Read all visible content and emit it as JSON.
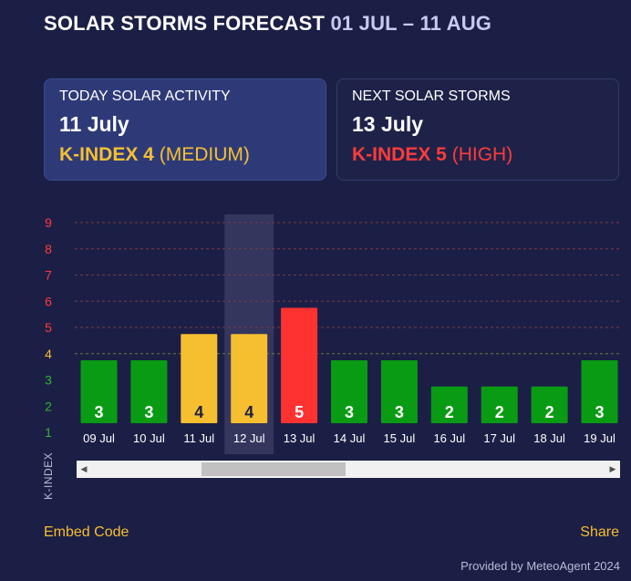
{
  "header": {
    "title": "SOLAR STORMS FORECAST",
    "range": "01 JUL – 11 AUG"
  },
  "today": {
    "label": "TODAY SOLAR ACTIVITY",
    "date": "11 July",
    "k_text": "K-INDEX 4",
    "level": "(MEDIUM)"
  },
  "next": {
    "label": "NEXT SOLAR STORMS",
    "date": "13 July",
    "k_text": "K-INDEX 5",
    "level": "(HIGH)"
  },
  "chart_data": {
    "type": "bar",
    "ylabel": "K-INDEX",
    "ylim": [
      1,
      9
    ],
    "yticks": [
      1,
      2,
      3,
      4,
      5,
      6,
      7,
      8,
      9
    ],
    "categories": [
      "09 Jul",
      "10 Jul",
      "11 Jul",
      "12 Jul",
      "13 Jul",
      "14 Jul",
      "15 Jul",
      "16 Jul",
      "17 Jul",
      "18 Jul",
      "19 Jul"
    ],
    "values": [
      3,
      3,
      4,
      4,
      5,
      3,
      3,
      2,
      2,
      2,
      3
    ],
    "data_labels": [
      "3",
      "3",
      "4",
      "4",
      "5",
      "3",
      "3",
      "2",
      "2",
      "2",
      "3"
    ],
    "highlighted_category": "12 Jul",
    "colors": {
      "low": "#0a9b14",
      "medium": "#f6bf30",
      "high": "#ff3232",
      "tick_low": "#2fb52f",
      "tick_medium": "#f6bf30",
      "tick_high": "#ff3b3b"
    }
  },
  "scrollbar": {
    "left_arrow": "◀",
    "right_arrow": "▶"
  },
  "footer": {
    "embed": "Embed Code",
    "share": "Share",
    "provided": "Provided by MeteoAgent 2024"
  }
}
